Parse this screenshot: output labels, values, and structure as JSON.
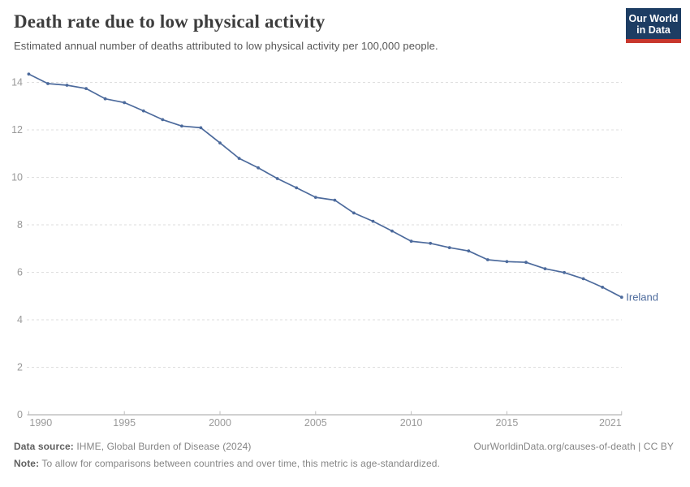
{
  "header": {
    "title": "Death rate due to low physical activity",
    "subtitle": "Estimated annual number of deaths attributed to low physical activity per 100,000 people."
  },
  "logo": {
    "line1": "Our World",
    "line2": "in Data",
    "bg_color": "#1d3d63",
    "accent_color": "#c8372d"
  },
  "chart_data": {
    "type": "line",
    "title": "Death rate due to low physical activity",
    "xlabel": "",
    "ylabel": "",
    "x": [
      1990,
      1991,
      1992,
      1993,
      1994,
      1995,
      1996,
      1997,
      1998,
      1999,
      2000,
      2001,
      2002,
      2003,
      2004,
      2005,
      2006,
      2007,
      2008,
      2009,
      2010,
      2011,
      2012,
      2013,
      2014,
      2015,
      2016,
      2017,
      2018,
      2019,
      2020,
      2021
    ],
    "series": [
      {
        "name": "Ireland",
        "color": "#4c6a9c",
        "values": [
          14.35,
          13.95,
          13.88,
          13.74,
          13.31,
          13.15,
          12.8,
          12.43,
          12.16,
          12.09,
          11.45,
          10.8,
          10.4,
          9.95,
          9.56,
          9.16,
          9.04,
          8.5,
          8.15,
          7.74,
          7.31,
          7.22,
          7.04,
          6.9,
          6.53,
          6.45,
          6.42,
          6.15,
          5.99,
          5.73,
          5.37,
          4.95
        ]
      }
    ],
    "ylim": [
      0,
      14.5
    ],
    "yticks": [
      0,
      2,
      4,
      6,
      8,
      10,
      12,
      14
    ],
    "xticks": [
      1990,
      1995,
      2000,
      2005,
      2010,
      2015,
      2021
    ],
    "grid": "horizontal dashed",
    "legend_position": "end-of-line label",
    "marker": "dot",
    "axis_color": "#a1a1a1",
    "grid_color": "#dedede",
    "tick_label_color": "#999999"
  },
  "footer": {
    "source_label": "Data source:",
    "source_text": "IHME, Global Burden of Disease (2024)",
    "link_text": "OurWorldinData.org/causes-of-death | CC BY",
    "note_label": "Note:",
    "note_text": "To allow for comparisons between countries and over time, this metric is age-standardized."
  }
}
